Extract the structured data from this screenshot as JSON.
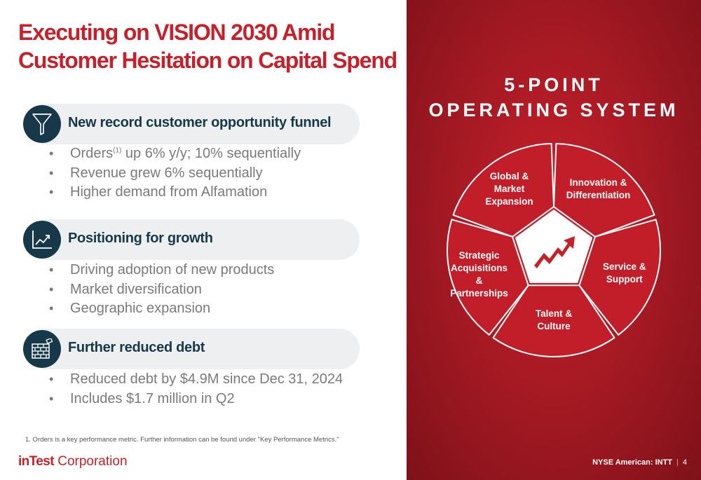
{
  "title_lines": [
    "Executing on VISION 2030 Amid",
    "Customer Hesitation on Capital Spend"
  ],
  "sections": [
    {
      "icon": "funnel-icon",
      "title": "New record customer opportunity funnel",
      "bullets": [
        {
          "prefix": "Orders",
          "sup": "(1)",
          "suffix": " up 6% y/y; 10% sequentially"
        },
        {
          "text": "Revenue grew 6% sequentially"
        },
        {
          "text": "Higher demand from Alfamation"
        }
      ]
    },
    {
      "icon": "growth-chart-icon",
      "title": "Positioning for growth",
      "bullets": [
        {
          "text": "Driving adoption of new products"
        },
        {
          "text": "Market diversification"
        },
        {
          "text": "Geographic expansion"
        }
      ]
    },
    {
      "icon": "brick-wall-icon",
      "title": "Further reduced debt",
      "bullets": [
        {
          "text": "Reduced debt by $4.9M since Dec 31, 2024"
        },
        {
          "text": "Includes $1.7 million in Q2"
        }
      ]
    }
  ],
  "footnote": "1. Orders is a key performance metric. Further information can be found under \"Key Performance Metrics.\"",
  "logo": {
    "brand": "inTest",
    "name": " Corporation"
  },
  "operating_system": {
    "title_lines": [
      "5-POINT",
      "OPERATING SYSTEM"
    ],
    "center_icon": "trend-up-arrow-icon",
    "segments": [
      {
        "lines": [
          "Global &",
          "Market",
          "Expansion"
        ]
      },
      {
        "lines": [
          "Innovation &",
          "Differentiation"
        ]
      },
      {
        "lines": [
          "Service &",
          "Support"
        ]
      },
      {
        "lines": [
          "Talent &",
          "Culture"
        ]
      },
      {
        "lines": [
          "Strategic",
          "Acquisitions",
          "&",
          "Partnerships"
        ]
      }
    ]
  },
  "footer": {
    "exchange": "NYSE American: INTT",
    "separator": "|",
    "page": "4"
  },
  "colors": {
    "brand_red": "#c8202a",
    "navy": "#163848",
    "panel_gray": "#eeeff0",
    "bullet_gray": "#7a7a7a"
  }
}
